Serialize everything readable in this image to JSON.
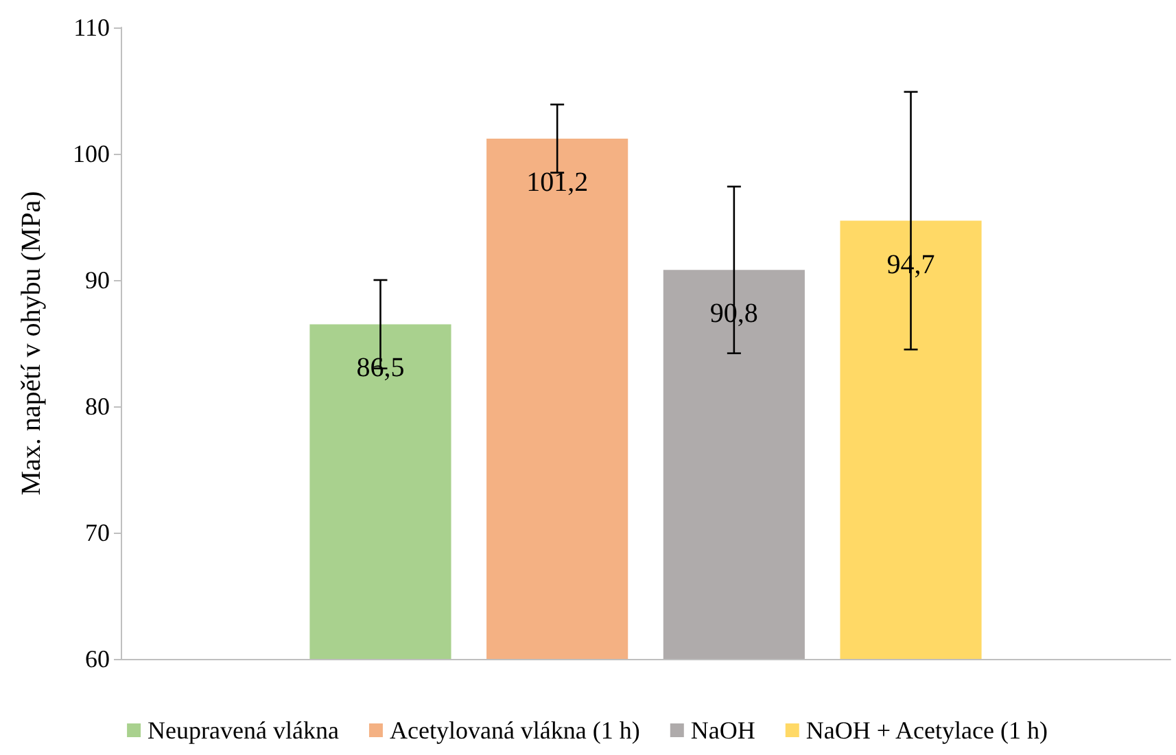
{
  "chart_data": {
    "type": "bar",
    "ylabel": "Max. napětí v ohybu (MPa)",
    "categories": [
      null
    ],
    "series": [
      {
        "name": "Neupravená vlákna",
        "color": "#a9d18e",
        "values": [
          86.5
        ],
        "errors": [
          3.5
        ],
        "value_labels": [
          "86,5"
        ]
      },
      {
        "name": "Acetylovaná vlákna (1 h)",
        "color": "#f4b183",
        "values": [
          101.2
        ],
        "errors": [
          2.7
        ],
        "value_labels": [
          "101,2"
        ]
      },
      {
        "name": "NaOH",
        "color": "#afabab",
        "values": [
          90.8
        ],
        "errors": [
          6.6
        ],
        "value_labels": [
          "90,8"
        ]
      },
      {
        "name": "NaOH + Acetylace (1 h)",
        "color": "#ffd966",
        "values": [
          94.7
        ],
        "errors": [
          10.2
        ],
        "value_labels": [
          "94,7"
        ]
      }
    ],
    "ylim": [
      60,
      110
    ],
    "yticks": [
      60,
      70,
      80,
      90,
      100,
      110
    ],
    "grid": false,
    "legend": "bottom"
  }
}
